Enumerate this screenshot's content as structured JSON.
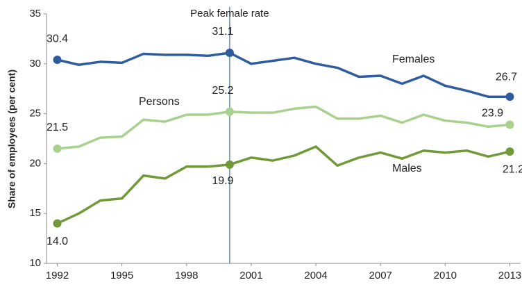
{
  "chart_data": {
    "type": "line",
    "y_label": "Share of employees (per cent)",
    "x": [
      1992,
      1993,
      1994,
      1995,
      1996,
      1997,
      1998,
      1999,
      2000,
      2001,
      2002,
      2003,
      2004,
      2005,
      2006,
      2007,
      2008,
      2009,
      2010,
      2011,
      2012,
      2013
    ],
    "series": [
      {
        "name": "Females",
        "color": "#2e5c9e",
        "values": [
          30.4,
          29.9,
          30.2,
          30.1,
          31.0,
          30.9,
          30.9,
          30.8,
          31.1,
          30.0,
          30.3,
          30.6,
          30.0,
          29.6,
          28.7,
          28.8,
          28.0,
          28.8,
          27.8,
          27.3,
          26.7,
          26.7
        ],
        "value_labels": [
          "30.4",
          null,
          null,
          null,
          null,
          null,
          null,
          null,
          "31.1",
          null,
          null,
          null,
          null,
          null,
          null,
          null,
          null,
          null,
          null,
          null,
          null,
          "26.7"
        ]
      },
      {
        "name": "Persons",
        "color": "#a9d18e",
        "values": [
          21.5,
          21.7,
          22.6,
          22.7,
          24.4,
          24.2,
          24.9,
          24.9,
          25.2,
          25.1,
          25.1,
          25.5,
          25.7,
          24.5,
          24.5,
          24.8,
          24.1,
          24.9,
          24.3,
          24.1,
          23.7,
          23.9
        ],
        "value_labels": [
          "21.5",
          null,
          null,
          null,
          null,
          null,
          null,
          null,
          "25.2",
          null,
          null,
          null,
          null,
          null,
          null,
          null,
          null,
          null,
          null,
          null,
          null,
          "23.9"
        ]
      },
      {
        "name": "Males",
        "color": "#6f9a37",
        "values": [
          14.0,
          15.0,
          16.3,
          16.5,
          18.8,
          18.5,
          19.7,
          19.7,
          19.9,
          20.6,
          20.3,
          20.8,
          21.7,
          19.8,
          20.6,
          21.1,
          20.5,
          21.3,
          21.1,
          21.3,
          20.7,
          21.2
        ],
        "value_labels": [
          "14.0",
          null,
          null,
          null,
          null,
          null,
          null,
          null,
          "19.9",
          null,
          null,
          null,
          null,
          null,
          null,
          null,
          null,
          null,
          null,
          null,
          null,
          "21.2"
        ]
      }
    ],
    "annotation": {
      "text": "Peak female rate",
      "x": 2000
    },
    "xlim": [
      1991.5,
      2013.5
    ],
    "xticks": [
      1992,
      1995,
      1998,
      2001,
      2004,
      2007,
      2010,
      2013
    ],
    "ylim": [
      10,
      35
    ],
    "yticks": [
      10,
      15,
      20,
      25,
      30,
      35
    ],
    "grid": false
  }
}
